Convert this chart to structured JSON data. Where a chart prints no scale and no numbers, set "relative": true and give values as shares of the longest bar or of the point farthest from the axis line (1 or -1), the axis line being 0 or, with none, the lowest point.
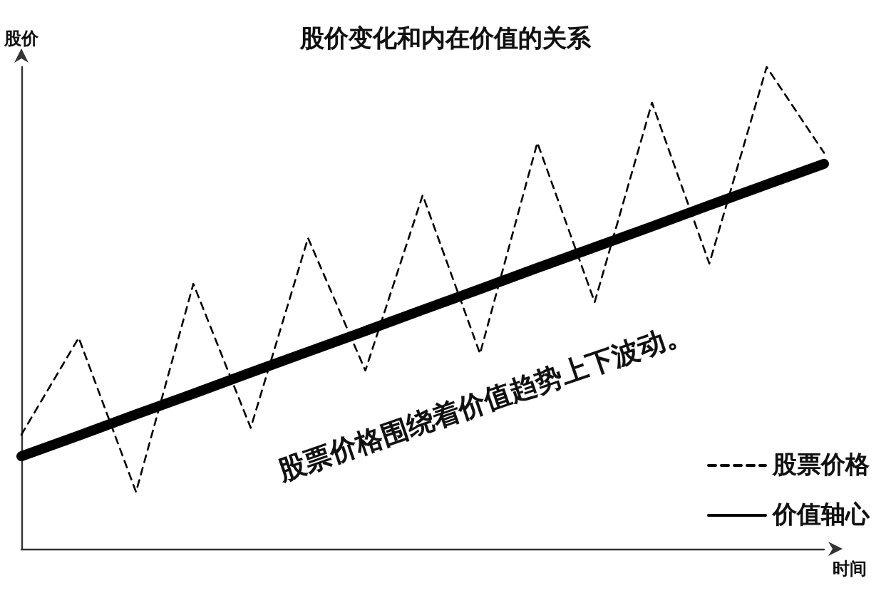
{
  "chart_data": {
    "type": "line",
    "title": "股价变化和内在价值的关系",
    "xlabel": "时间",
    "ylabel": "股价",
    "relative": true,
    "categories": [
      null,
      null,
      null,
      null,
      null,
      null,
      null,
      null,
      null,
      null,
      null,
      null,
      null,
      null,
      null
    ],
    "series": [
      {
        "name": "股票价格",
        "color": "#000000",
        "line_style": "dashed",
        "values": [
          0.237,
          0.438,
          0.118,
          0.55,
          0.251,
          0.645,
          0.37,
          0.734,
          0.405,
          0.843,
          0.512,
          0.926,
          0.592,
          1,
          0.822
        ]
      },
      {
        "name": "价值轴心",
        "color": "#000000",
        "line_style": "solid",
        "values": [
          0.192,
          0.235,
          0.279,
          0.322,
          0.366,
          0.409,
          0.452,
          0.496,
          0.539,
          0.583,
          0.626,
          0.669,
          0.713,
          0.756,
          0.799
        ]
      }
    ],
    "annotations": [
      "股票价格围绕着价值趋势上下波动。"
    ],
    "legend": "bottom right",
    "grid": false,
    "marker": "none"
  }
}
